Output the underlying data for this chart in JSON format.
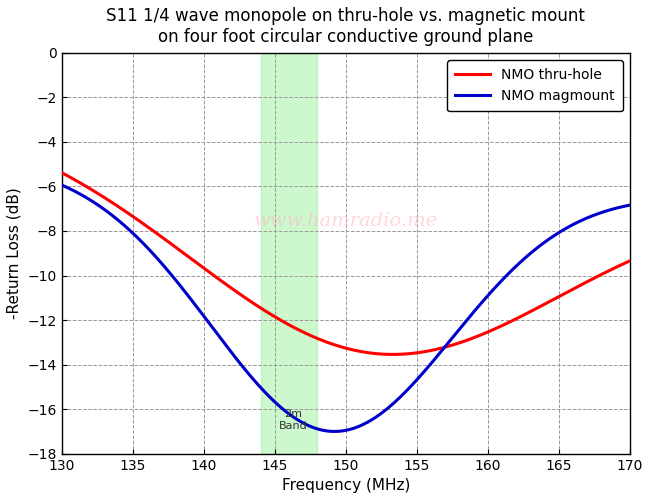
{
  "title": "S11 1/4 wave monopole on thru-hole vs. magnetic mount\non four foot circular conductive ground plane",
  "xlabel": "Frequency (MHz)",
  "ylabel": "-Return Loss (dB)",
  "xmin": 130,
  "xmax": 170,
  "ymin": -18,
  "ymax": 0,
  "xticks": [
    130,
    135,
    140,
    145,
    150,
    155,
    160,
    165,
    170
  ],
  "yticks": [
    0,
    -2,
    -4,
    -6,
    -8,
    -10,
    -12,
    -14,
    -16,
    -18
  ],
  "band_start": 144,
  "band_end": 148,
  "band_label": "2m\nBand",
  "band_color": "#90EE90",
  "band_alpha": 0.45,
  "line_red_color": "#FF0000",
  "line_blue_color": "#0000CC",
  "line_width": 2.2,
  "legend_labels": [
    "NMO thru-hole",
    "NMO magmount"
  ],
  "watermark": "www.hamradio.me",
  "watermark_color": "#FFB6C1",
  "watermark_alpha": 0.55,
  "bg_color": "#FFFFFF",
  "grid_color": "#999999",
  "grid_style": "--",
  "title_fontsize": 12,
  "label_fontsize": 11,
  "tick_fontsize": 10
}
